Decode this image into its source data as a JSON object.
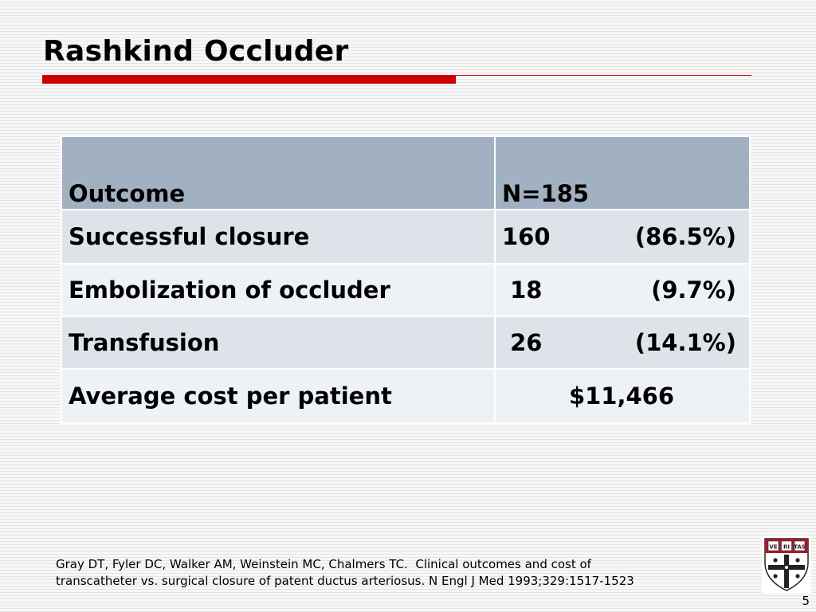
{
  "slide": {
    "title": "Rashkind Occluder",
    "page_number": "5",
    "accent_color": "#cc0000"
  },
  "table": {
    "header": {
      "outcome": "Outcome",
      "n": "N=185"
    },
    "rows": [
      {
        "outcome": "Successful closure",
        "count": "160",
        "pct": "(86.5%)"
      },
      {
        "outcome": "Embolization of occluder",
        "count": " 18",
        "pct": "(9.7%)"
      },
      {
        "outcome": "Transfusion",
        "count": " 26",
        "pct": "(14.1%)"
      },
      {
        "outcome": "Average cost per patient",
        "value": "$11,466"
      }
    ],
    "colors": {
      "header_bg": "#a2b1c2",
      "row_dark": "#dee3ea",
      "row_light": "#eef1f5"
    }
  },
  "citation": {
    "line1": "Gray DT, Fyler DC, Walker AM, Weinstein MC, Chalmers TC.  Clinical outcomes and cost of",
    "line2": "transcatheter vs. surgical closure of patent ductus arteriosus. N Engl J Med 1993;329:1517-1523"
  },
  "logo": {
    "icon": "harvard-shield-icon",
    "text": "VE RI TAS"
  }
}
